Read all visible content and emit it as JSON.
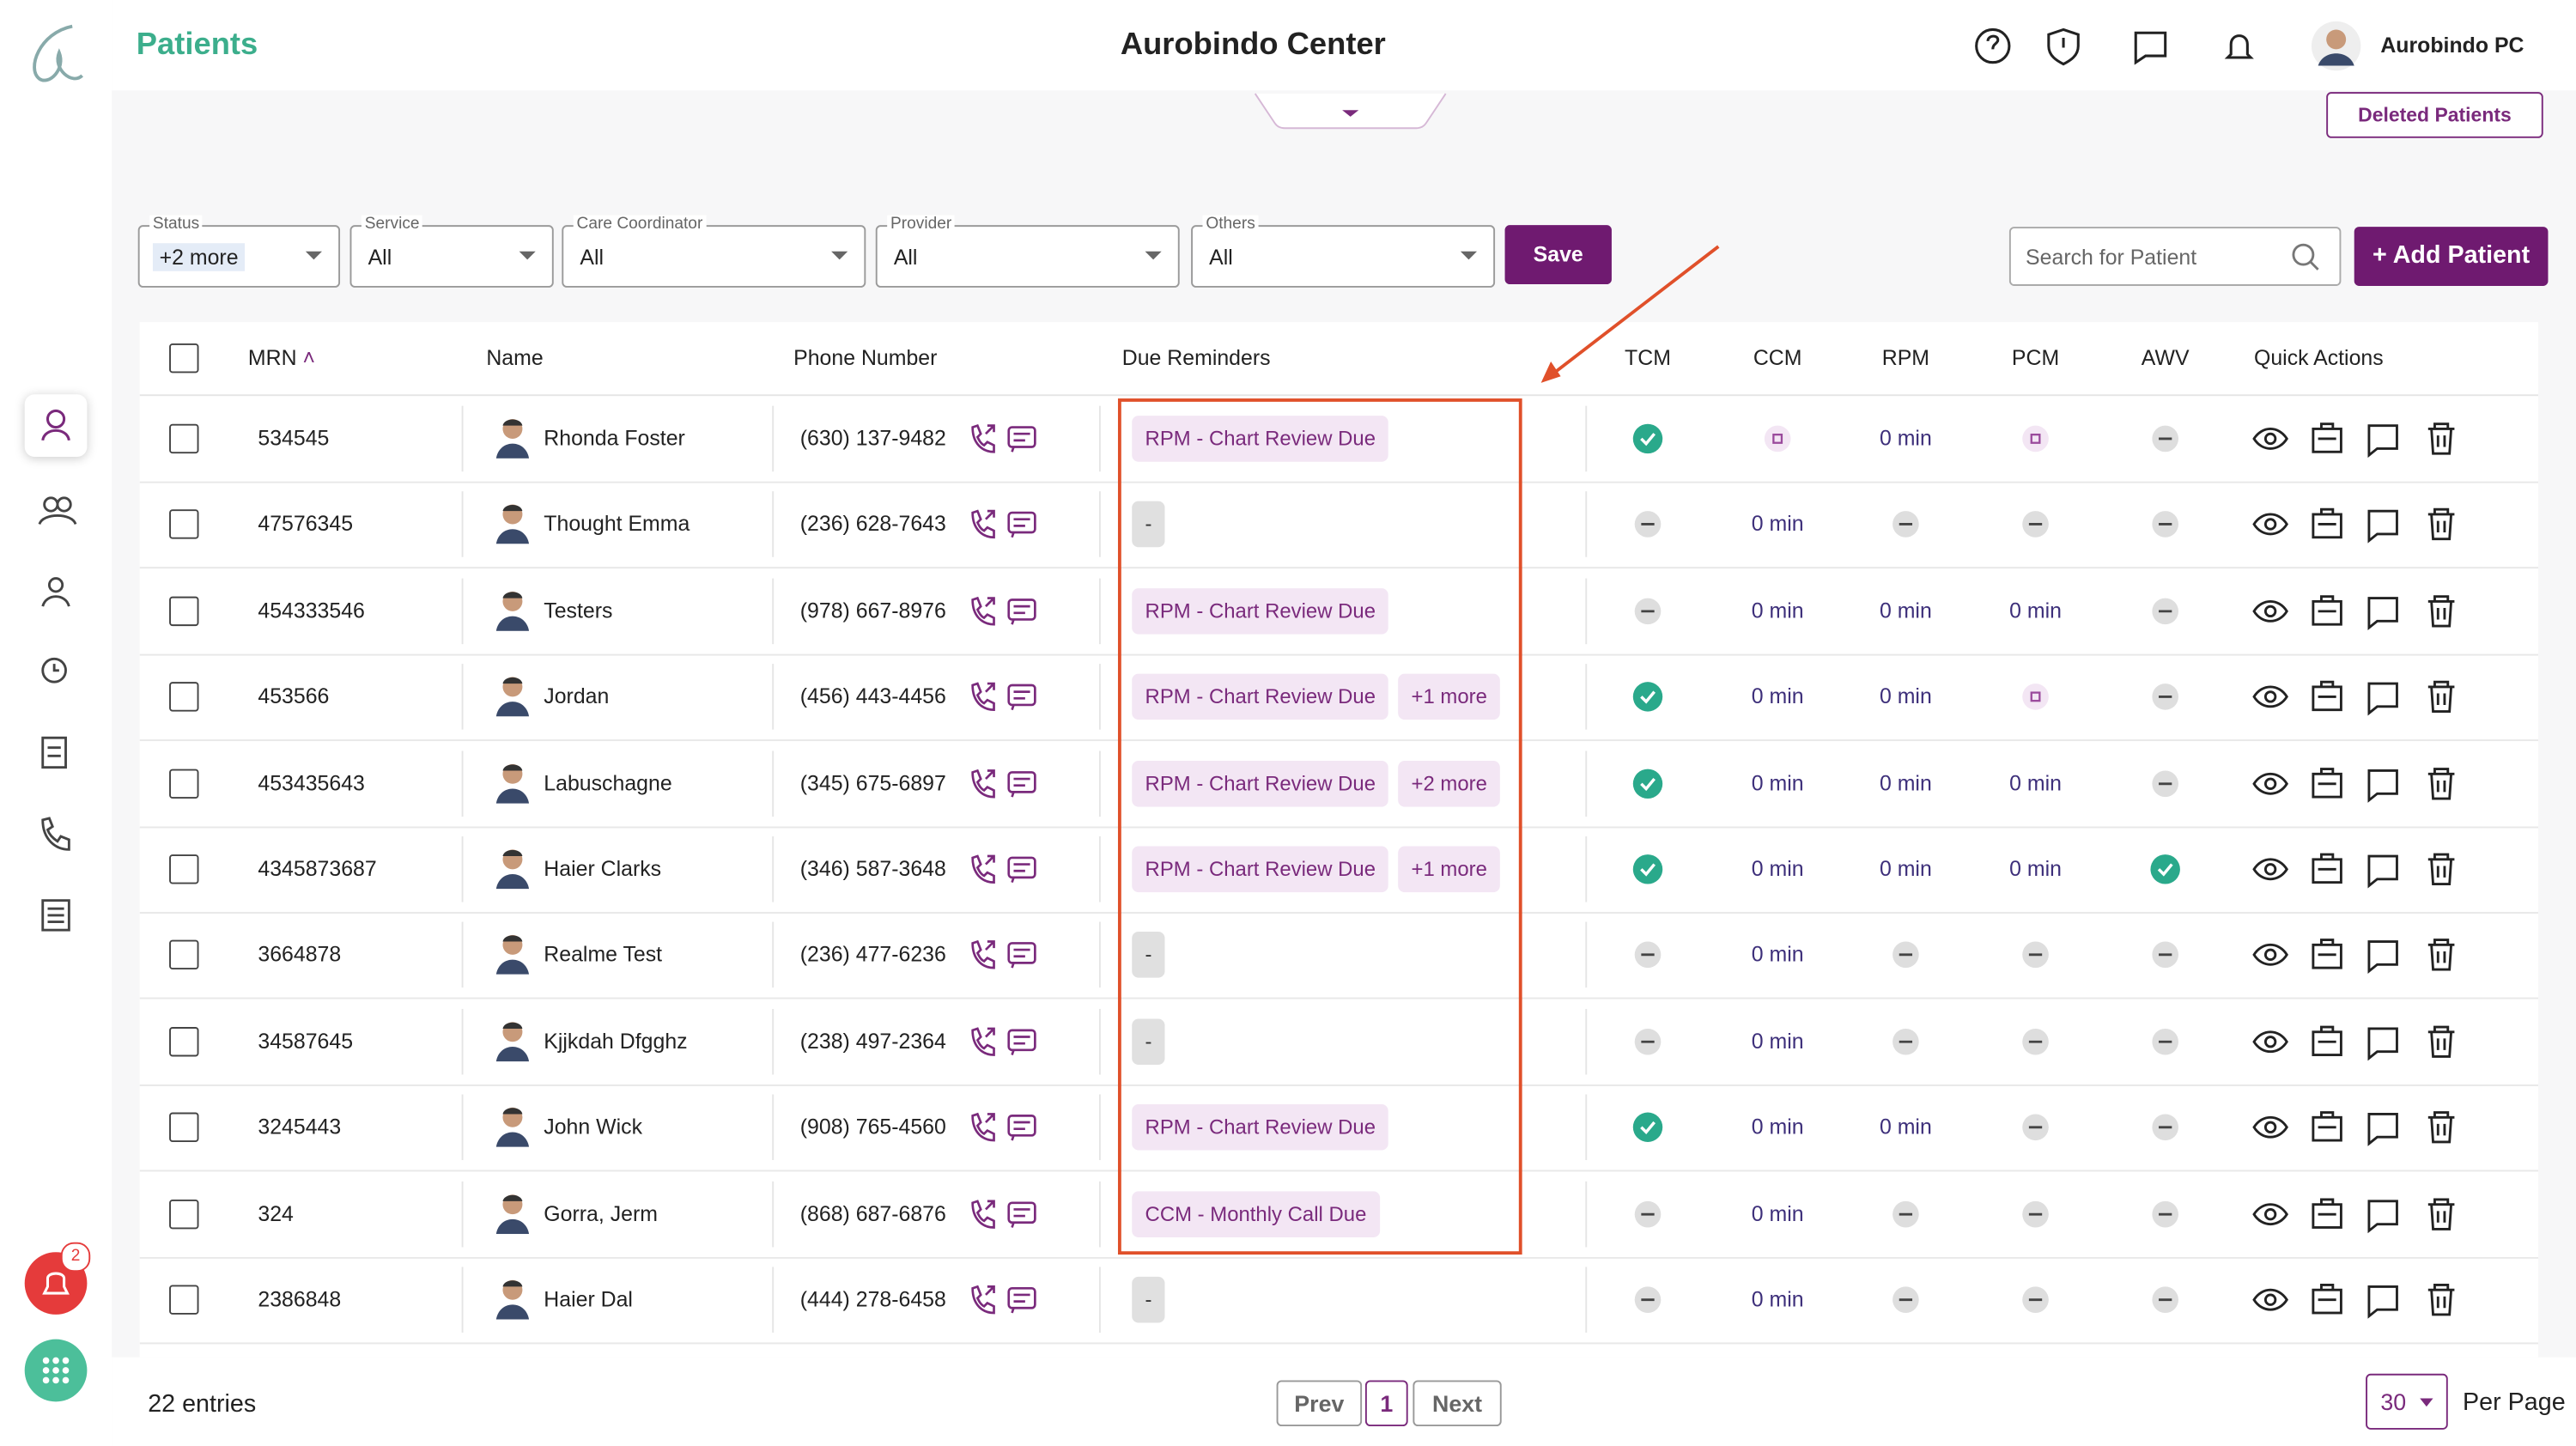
{
  "header": {
    "title": "Patients",
    "center": "Aurobindo Center",
    "user": "Aurobindo PC"
  },
  "deleted_link": "Deleted Patients",
  "filters": [
    {
      "label": "Status",
      "value": "+2 more"
    },
    {
      "label": "Service",
      "value": "All"
    },
    {
      "label": "Care Coordinator",
      "value": "All"
    },
    {
      "label": "Provider",
      "value": "All"
    },
    {
      "label": "Others",
      "value": "All"
    }
  ],
  "save": "Save",
  "search_placeholder": "Search for Patient",
  "add_patient": "+ Add Patient",
  "table": {
    "columns": [
      "MRN",
      "Name",
      "Phone Number",
      "Due Reminders",
      "TCM",
      "CCM",
      "RPM",
      "PCM",
      "AWV",
      "Quick Actions"
    ],
    "rows": [
      {
        "mrn": "534545",
        "name": "Rhonda Foster",
        "phone": "(630) 137-9482",
        "reminders": [
          "RPM - Chart Review Due"
        ],
        "status": [
          "check",
          "dot",
          "0 min",
          "dot",
          "dash"
        ]
      },
      {
        "mrn": "47576345",
        "name": "Thought Emma",
        "phone": "(236) 628-7643",
        "reminders": [
          "-"
        ],
        "status": [
          "dash",
          "0 min",
          "dash",
          "dash",
          "dash"
        ]
      },
      {
        "mrn": "454333546",
        "name": "Testers",
        "phone": "(978) 667-8976",
        "reminders": [
          "RPM - Chart Review Due"
        ],
        "status": [
          "dash",
          "0 min",
          "0 min",
          "0 min",
          "dash"
        ]
      },
      {
        "mrn": "453566",
        "name": "Jordan",
        "phone": "(456) 443-4456",
        "reminders": [
          "RPM - Chart Review Due",
          "+1 more"
        ],
        "status": [
          "check",
          "0 min",
          "0 min",
          "dot",
          "dash"
        ]
      },
      {
        "mrn": "453435643",
        "name": "Labuschagne",
        "phone": "(345) 675-6897",
        "reminders": [
          "RPM - Chart Review Due",
          "+2 more"
        ],
        "status": [
          "check",
          "0 min",
          "0 min",
          "0 min",
          "dash"
        ]
      },
      {
        "mrn": "4345873687",
        "name": "Haier Clarks",
        "phone": "(346) 587-3648",
        "reminders": [
          "RPM - Chart Review Due",
          "+1 more"
        ],
        "status": [
          "check",
          "0 min",
          "0 min",
          "0 min",
          "check"
        ]
      },
      {
        "mrn": "3664878",
        "name": "Realme Test",
        "phone": "(236) 477-6236",
        "reminders": [
          "-"
        ],
        "status": [
          "dash",
          "0 min",
          "dash",
          "dash",
          "dash"
        ]
      },
      {
        "mrn": "34587645",
        "name": "Kjjkdah Dfgghz",
        "phone": "(238) 497-2364",
        "reminders": [
          "-"
        ],
        "status": [
          "dash",
          "0 min",
          "dash",
          "dash",
          "dash"
        ]
      },
      {
        "mrn": "3245443",
        "name": "John Wick",
        "phone": "(908) 765-4560",
        "reminders": [
          "RPM - Chart Review Due"
        ],
        "status": [
          "check",
          "0 min",
          "0 min",
          "dash",
          "dash"
        ]
      },
      {
        "mrn": "324",
        "name": "Gorra, Jerm",
        "phone": "(868) 687-6876",
        "reminders": [
          "CCM - Monthly Call Due"
        ],
        "status": [
          "dash",
          "0 min",
          "dash",
          "dash",
          "dash"
        ]
      },
      {
        "mrn": "2386848",
        "name": "Haier Dal",
        "phone": "(444) 278-6458",
        "reminders": [
          "-"
        ],
        "status": [
          "dash",
          "0 min",
          "dash",
          "dash",
          "dash"
        ]
      }
    ]
  },
  "footer": {
    "entries": "22 entries",
    "prev": "Prev",
    "page": "1",
    "next": "Next",
    "per_page_value": "30",
    "per_page": "Per Page"
  },
  "notification_badge": "2"
}
